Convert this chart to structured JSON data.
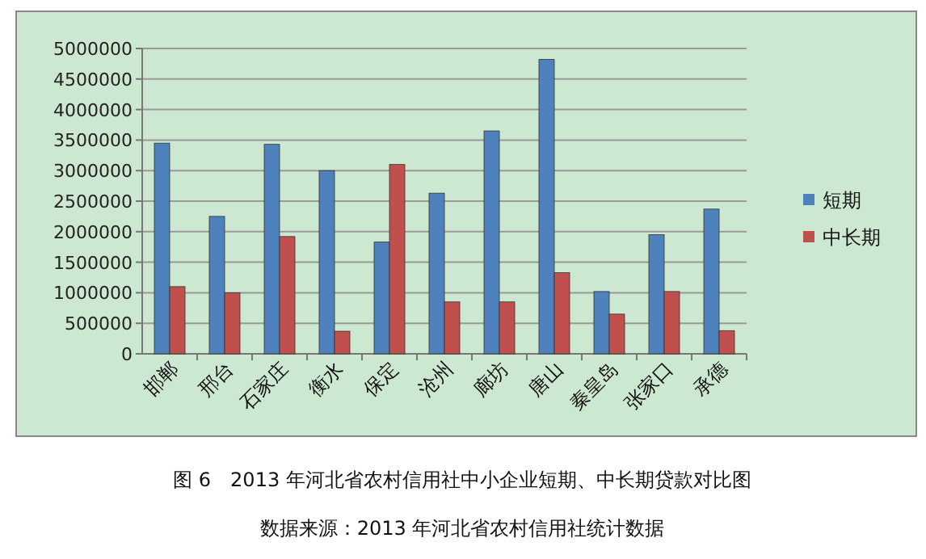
{
  "chart_data": {
    "type": "bar",
    "title": "图 6　2013 年河北省农村信用社中小企业短期、中长期贷款对比图",
    "annotations": [
      "数据来源：2013 年河北省农村信用社统计数据"
    ],
    "categories": [
      "邯郸",
      "邢台",
      "石家庄",
      "衡水",
      "保定",
      "沧州",
      "廊坊",
      "唐山",
      "秦皇岛",
      "张家口",
      "承德"
    ],
    "series": [
      {
        "name": "短期",
        "color": "#4f81bd",
        "values": [
          3450000,
          2250000,
          3430000,
          3000000,
          1830000,
          2630000,
          3650000,
          4820000,
          1020000,
          1950000,
          2370000
        ]
      },
      {
        "name": "中长期",
        "color": "#c0504d",
        "values": [
          1100000,
          1000000,
          1920000,
          370000,
          3100000,
          850000,
          850000,
          1330000,
          650000,
          1020000,
          380000
        ]
      }
    ],
    "ylim": [
      0,
      5000000
    ],
    "yticks": [
      0,
      500000,
      1000000,
      1500000,
      2000000,
      2500000,
      3000000,
      3500000,
      4000000,
      4500000,
      5000000
    ],
    "grid": "y",
    "legend": "right"
  }
}
